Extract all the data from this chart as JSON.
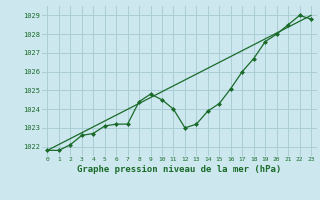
{
  "title": "Graphe pression niveau de la mer (hPa)",
  "title_fontsize": 6.5,
  "bg_color": "#cce8ee",
  "grid_color": "#aacdd5",
  "line_color": "#1a6b2a",
  "xlim": [
    -0.5,
    23.5
  ],
  "ylim": [
    1021.5,
    1029.5
  ],
  "yticks": [
    1022,
    1023,
    1024,
    1025,
    1026,
    1027,
    1028,
    1029
  ],
  "xticks": [
    0,
    1,
    2,
    3,
    4,
    5,
    6,
    7,
    8,
    9,
    10,
    11,
    12,
    13,
    14,
    15,
    16,
    17,
    18,
    19,
    20,
    21,
    22,
    23
  ],
  "data_x": [
    0,
    1,
    2,
    3,
    4,
    5,
    6,
    7,
    8,
    9,
    10,
    11,
    12,
    13,
    14,
    15,
    16,
    17,
    18,
    19,
    20,
    21,
    22,
    23
  ],
  "data_y": [
    1021.8,
    1021.8,
    1022.1,
    1022.6,
    1022.7,
    1023.1,
    1023.2,
    1023.2,
    1024.4,
    1024.8,
    1024.5,
    1024.0,
    1023.0,
    1023.2,
    1023.9,
    1024.3,
    1025.1,
    1026.0,
    1026.7,
    1027.6,
    1028.0,
    1028.5,
    1029.0,
    1028.8
  ],
  "trend_x": [
    0,
    23
  ],
  "trend_y": [
    1021.8,
    1029.0
  ]
}
